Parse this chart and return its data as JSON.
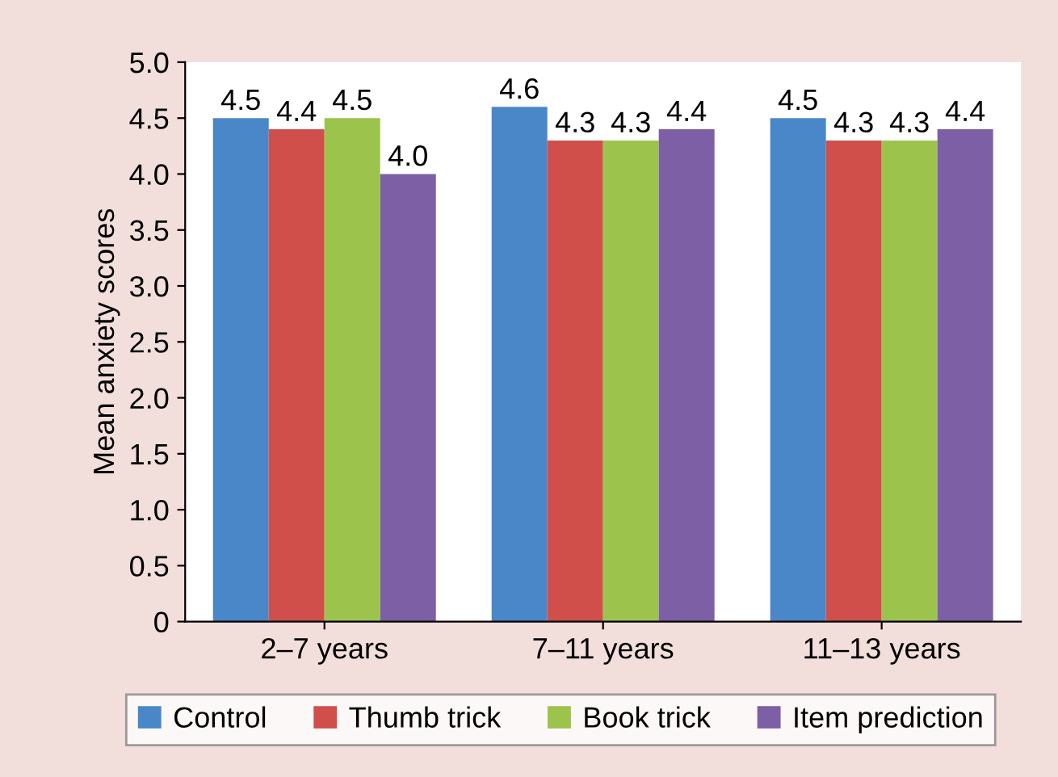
{
  "chart_data": {
    "type": "bar",
    "ylabel": "Mean anxiety scores",
    "categories": [
      "2–7 years",
      "7–11 years",
      "11–13 years"
    ],
    "series": [
      {
        "name": "Control",
        "color": "#4a87c8",
        "values": [
          4.5,
          4.6,
          4.5
        ],
        "value_labels": [
          "4.5",
          "4.6",
          "4.5"
        ]
      },
      {
        "name": "Thumb trick",
        "color": "#d04f4b",
        "values": [
          4.4,
          4.3,
          4.3
        ],
        "value_labels": [
          "4.4",
          "4.3",
          "4.3"
        ]
      },
      {
        "name": "Book trick",
        "color": "#9cc44d",
        "values": [
          4.5,
          4.3,
          4.3
        ],
        "value_labels": [
          "4.5",
          "4.3",
          "4.3"
        ]
      },
      {
        "name": "Item prediction",
        "color": "#7d5fa5",
        "values": [
          4.0,
          4.4,
          4.4
        ],
        "value_labels": [
          "4.0",
          "4.4",
          "4.4"
        ]
      }
    ],
    "ylim": [
      0,
      5
    ],
    "yticks": [
      0,
      {
        "value": 0.5,
        "label": "0.5"
      },
      {
        "value": 1,
        "label": "1.0"
      },
      {
        "value": 1.5,
        "label": "1.5"
      },
      {
        "value": 2,
        "label": "2.0"
      },
      {
        "value": 2.5,
        "label": "2.5"
      },
      {
        "value": 3,
        "label": "3.0"
      },
      {
        "value": 3.5,
        "label": "3.5"
      },
      {
        "value": 4,
        "label": "4.0"
      },
      {
        "value": 4.5,
        "label": "4.5"
      },
      {
        "value": 5,
        "label": "5.0"
      }
    ],
    "grid": false,
    "legend": "bottom"
  }
}
